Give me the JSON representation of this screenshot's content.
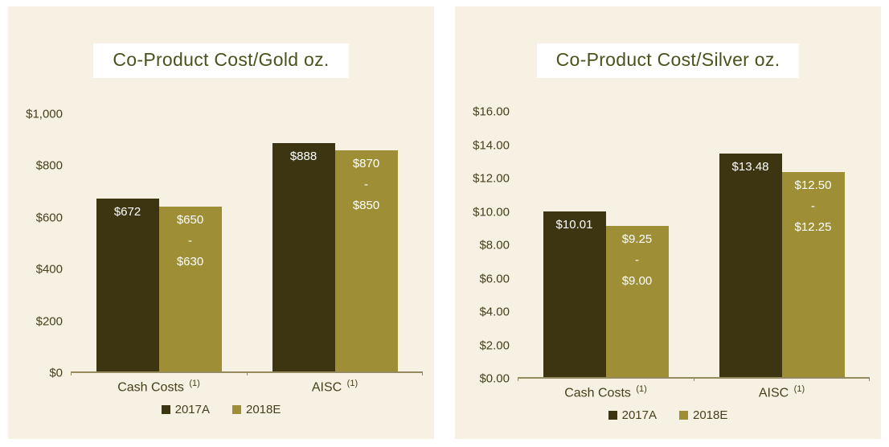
{
  "colors": {
    "page_bg": "#ffffff",
    "panel_bg": "#f6f1e2",
    "title_box_bg": "#ffffff",
    "title_text": "#4b521c",
    "axis_text": "#463e1c",
    "axis_line": "#94895f",
    "bar_label_text": "#ffffff",
    "series_2017a": "#3d3512",
    "series_2018e": "#9e8f36"
  },
  "chart_data": [
    {
      "type": "bar",
      "title": "Co-Product Cost/Gold oz.",
      "ylim": [
        0,
        1000
      ],
      "ymax": 1000,
      "grid": false,
      "legend_position": "bottom",
      "y_ticks": [
        "$1,000",
        "$800",
        "$600",
        "$400",
        "$200",
        "$0"
      ],
      "categories": [
        {
          "label": "Cash Costs",
          "footnote": "(1)"
        },
        {
          "label": "AISC",
          "footnote": "(1)"
        }
      ],
      "series": [
        {
          "name": "2017A",
          "color": "#3d3512",
          "values": [
            672,
            888
          ],
          "bar_labels": [
            [
              "$672"
            ],
            [
              "$888"
            ]
          ]
        },
        {
          "name": "2018E",
          "color": "#9e8f36",
          "values": [
            640,
            860
          ],
          "bar_labels": [
            [
              "$650",
              "-",
              "$630"
            ],
            [
              "$870",
              "-",
              "$850"
            ]
          ]
        }
      ]
    },
    {
      "type": "bar",
      "title": "Co-Product Cost/Silver oz.",
      "ylim": [
        0,
        16
      ],
      "ymax": 16,
      "grid": false,
      "legend_position": "bottom",
      "y_ticks": [
        "$16.00",
        "$14.00",
        "$12.00",
        "$10.00",
        "$8.00",
        "$6.00",
        "$4.00",
        "$2.00",
        "$0.00"
      ],
      "categories": [
        {
          "label": "Cash Costs",
          "footnote": "(1)"
        },
        {
          "label": "AISC",
          "footnote": "(1)"
        }
      ],
      "series": [
        {
          "name": "2017A",
          "color": "#3d3512",
          "values": [
            10.01,
            13.48
          ],
          "bar_labels": [
            [
              "$10.01"
            ],
            [
              "$13.48"
            ]
          ]
        },
        {
          "name": "2018E",
          "color": "#9e8f36",
          "values": [
            9.12,
            12.37
          ],
          "bar_labels": [
            [
              "$9.25",
              "-",
              "$9.00"
            ],
            [
              "$12.50",
              "-",
              "$12.25"
            ]
          ]
        }
      ]
    }
  ]
}
